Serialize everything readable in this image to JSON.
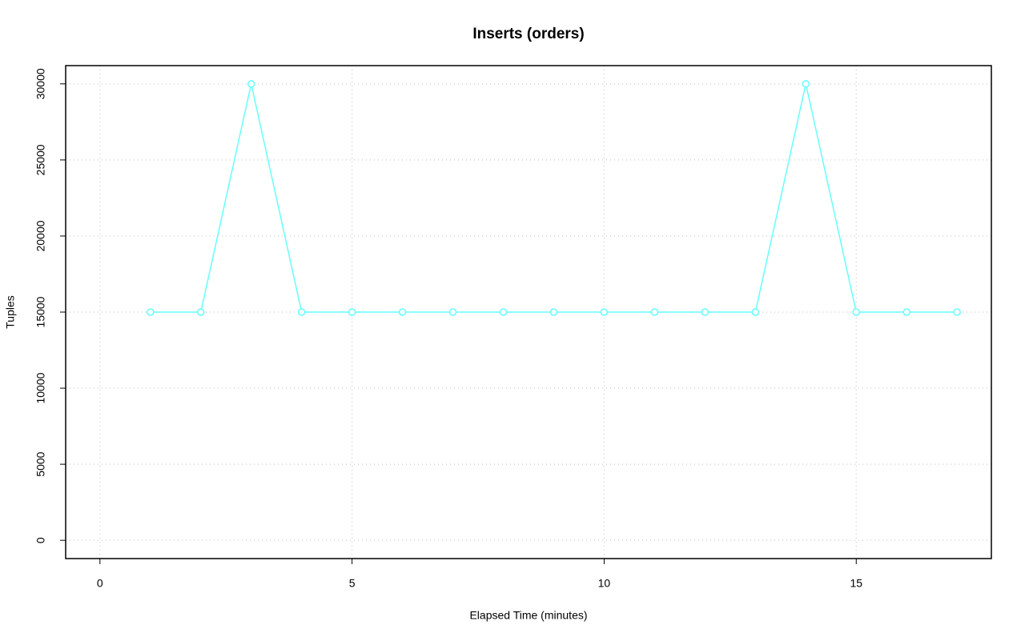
{
  "chart_data": {
    "type": "line",
    "title": "Inserts (orders)",
    "xlabel": "Elapsed Time (minutes)",
    "ylabel": "Tuples",
    "x": [
      1,
      2,
      3,
      4,
      5,
      6,
      7,
      8,
      9,
      10,
      11,
      12,
      13,
      14,
      15,
      16,
      17
    ],
    "values": [
      15000,
      15000,
      30000,
      15000,
      15000,
      15000,
      15000,
      15000,
      15000,
      15000,
      15000,
      15000,
      15000,
      30000,
      15000,
      15000,
      15000
    ],
    "color": "#66ffff",
    "xlim": [
      -0.68,
      17.68
    ],
    "ylim": [
      -1200,
      31200
    ],
    "xticks": [
      0,
      5,
      10,
      15
    ],
    "yticks": [
      0,
      5000,
      10000,
      15000,
      20000,
      25000,
      30000
    ],
    "grid": true
  }
}
